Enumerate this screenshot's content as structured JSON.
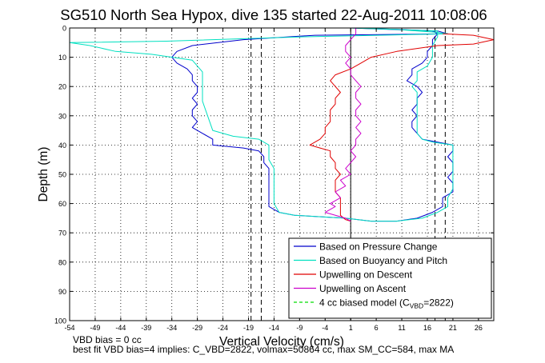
{
  "chart_data": {
    "type": "line",
    "title": "SG510 North Sea Hypox, dive 135 started 22-Aug-2011 10:08:06",
    "xlabel": "Vertical Velocity (cm/s)",
    "ylabel": "Depth (m)",
    "xlim": [
      -54,
      29
    ],
    "ylim": [
      0,
      100
    ],
    "y_reversed": true,
    "grid": true,
    "x_ticks": [
      -54,
      -49,
      -44,
      -39,
      -34,
      -29,
      -24,
      -19,
      -14,
      -9,
      -4,
      1,
      6,
      11,
      16,
      21,
      26
    ],
    "y_ticks": [
      0,
      10,
      20,
      30,
      40,
      50,
      60,
      70,
      80,
      90,
      100
    ],
    "reference_lines": [
      {
        "x": 1,
        "style": "solid"
      },
      {
        "x": -16.5,
        "style": "dashed"
      },
      {
        "x": -18.5,
        "style": "dashed"
      },
      {
        "x": 17.5,
        "style": "dashed"
      },
      {
        "x": 19.5,
        "style": "dashed"
      }
    ],
    "legend_position": "bottom-right",
    "series": [
      {
        "name": "Based on Pressure Change",
        "color": "#0000cc",
        "points": [
          [
            1,
            0
          ],
          [
            10,
            0.5
          ],
          [
            18,
            1
          ],
          [
            20,
            2
          ],
          [
            -6,
            2.5
          ],
          [
            -20,
            4
          ],
          [
            -30,
            6
          ],
          [
            -33,
            8
          ],
          [
            -34,
            10
          ],
          [
            -33,
            12
          ],
          [
            -31,
            14
          ],
          [
            -30,
            16
          ],
          [
            -30,
            18
          ],
          [
            -29,
            20
          ],
          [
            -29,
            22
          ],
          [
            -30,
            24
          ],
          [
            -29,
            26
          ],
          [
            -30,
            28
          ],
          [
            -30,
            30
          ],
          [
            -29,
            32
          ],
          [
            -30,
            34
          ],
          [
            -28,
            36
          ],
          [
            -26,
            38
          ],
          [
            -26,
            40
          ],
          [
            -20,
            41
          ],
          [
            -17,
            42
          ],
          [
            -16,
            44
          ],
          [
            -16,
            46
          ],
          [
            -15,
            48
          ],
          [
            -15,
            50
          ],
          [
            -15,
            54
          ],
          [
            -15,
            58
          ],
          [
            -15,
            61
          ],
          [
            -13,
            63
          ],
          [
            -10,
            64
          ],
          [
            0,
            65
          ],
          [
            5,
            66
          ],
          [
            10,
            66
          ],
          [
            14,
            65
          ],
          [
            17,
            63
          ],
          [
            19,
            61
          ],
          [
            19,
            58
          ],
          [
            21,
            56
          ],
          [
            21,
            53
          ],
          [
            20,
            51
          ],
          [
            21,
            49
          ],
          [
            21,
            46
          ],
          [
            20,
            44
          ],
          [
            21,
            42
          ],
          [
            21,
            40
          ],
          [
            18,
            39
          ],
          [
            15,
            38
          ],
          [
            14,
            36
          ],
          [
            13,
            34
          ],
          [
            13,
            32
          ],
          [
            14,
            30
          ],
          [
            13,
            28
          ],
          [
            14,
            26
          ],
          [
            14,
            24
          ],
          [
            15,
            22
          ],
          [
            14,
            20
          ],
          [
            12,
            18
          ],
          [
            13,
            16
          ],
          [
            13,
            14
          ],
          [
            15,
            12
          ],
          [
            16,
            10
          ],
          [
            16,
            8
          ],
          [
            17,
            6
          ],
          [
            17,
            4
          ],
          [
            18,
            2
          ],
          [
            17,
            1
          ],
          [
            1,
            0
          ]
        ]
      },
      {
        "name": "Based on Buoyancy and Pitch",
        "color": "#00e0c0",
        "points": [
          [
            1,
            0
          ],
          [
            10,
            0.5
          ],
          [
            18,
            1.5
          ],
          [
            20,
            2
          ],
          [
            -8,
            3
          ],
          [
            -35,
            4.5
          ],
          [
            -54,
            5
          ],
          [
            -50,
            6
          ],
          [
            -45,
            8
          ],
          [
            -38,
            9
          ],
          [
            -30,
            11
          ],
          [
            -29,
            13
          ],
          [
            -28,
            15
          ],
          [
            -28,
            17
          ],
          [
            -28,
            20
          ],
          [
            -28,
            25
          ],
          [
            -27,
            30
          ],
          [
            -26,
            35
          ],
          [
            -22,
            37
          ],
          [
            -17,
            38
          ],
          [
            -15,
            40
          ],
          [
            -15,
            42
          ],
          [
            -15,
            45
          ],
          [
            -14,
            48
          ],
          [
            -14,
            52
          ],
          [
            -14,
            56
          ],
          [
            -14,
            60
          ],
          [
            -13,
            63
          ],
          [
            -10,
            64
          ],
          [
            0,
            65
          ],
          [
            5,
            66
          ],
          [
            10,
            66
          ],
          [
            15,
            65
          ],
          [
            18,
            63
          ],
          [
            20,
            61
          ],
          [
            20,
            58
          ],
          [
            21,
            55
          ],
          [
            21,
            52
          ],
          [
            21,
            48
          ],
          [
            21,
            45
          ],
          [
            21,
            40
          ],
          [
            17,
            39
          ],
          [
            15,
            38
          ],
          [
            14,
            36
          ],
          [
            14,
            32
          ],
          [
            14,
            28
          ],
          [
            14,
            24
          ],
          [
            14,
            22
          ],
          [
            13,
            20
          ],
          [
            14,
            18
          ],
          [
            14,
            15
          ],
          [
            16,
            13
          ],
          [
            17,
            10
          ],
          [
            17,
            6
          ],
          [
            18,
            3
          ],
          [
            18,
            1
          ],
          [
            1,
            0
          ]
        ]
      },
      {
        "name": "Upwelling on Descent",
        "color": "#e00000",
        "points": [
          [
            19,
            2
          ],
          [
            25,
            2.5
          ],
          [
            29,
            4
          ],
          [
            25,
            5.5
          ],
          [
            18,
            6
          ],
          [
            14,
            7
          ],
          [
            10,
            8
          ],
          [
            5,
            10
          ],
          [
            3,
            12
          ],
          [
            1,
            14
          ],
          [
            -2,
            16
          ],
          [
            -3,
            18
          ],
          [
            -2,
            20
          ],
          [
            -1,
            22
          ],
          [
            -2,
            24
          ],
          [
            -2,
            26
          ],
          [
            -3,
            28
          ],
          [
            -3,
            30
          ],
          [
            -3,
            32
          ],
          [
            -4,
            34
          ],
          [
            -4,
            36
          ],
          [
            -5,
            38
          ],
          [
            -7,
            40
          ],
          [
            -5,
            41
          ],
          [
            -3,
            42
          ],
          [
            -3,
            44
          ],
          [
            -2,
            46
          ],
          [
            -2,
            48
          ],
          [
            -1,
            50
          ],
          [
            -2,
            52
          ],
          [
            -2,
            54
          ],
          [
            -2,
            56
          ],
          [
            -1,
            58
          ],
          [
            -1,
            60
          ],
          [
            -1,
            62
          ],
          [
            -1,
            64
          ],
          [
            0,
            65.5
          ],
          [
            1,
            66
          ]
        ]
      },
      {
        "name": "Upwelling on Ascent",
        "color": "#cc00cc",
        "points": [
          [
            1,
            66
          ],
          [
            0,
            65
          ],
          [
            -4,
            63
          ],
          [
            -2,
            61
          ],
          [
            -3,
            60
          ],
          [
            -1,
            58
          ],
          [
            -2,
            56
          ],
          [
            0,
            54
          ],
          [
            -1,
            52
          ],
          [
            1,
            50
          ],
          [
            0,
            48
          ],
          [
            1,
            46
          ],
          [
            2,
            44
          ],
          [
            1,
            42
          ],
          [
            2,
            40
          ],
          [
            2,
            38
          ],
          [
            3,
            36
          ],
          [
            2,
            34
          ],
          [
            3,
            32
          ],
          [
            2,
            30
          ],
          [
            2,
            28
          ],
          [
            3,
            26
          ],
          [
            2,
            24
          ],
          [
            2,
            22
          ],
          [
            3,
            20
          ],
          [
            2,
            18
          ],
          [
            1,
            16
          ],
          [
            1,
            14
          ],
          [
            0,
            12
          ],
          [
            1,
            10
          ],
          [
            0,
            8
          ],
          [
            0,
            6
          ],
          [
            1,
            4
          ],
          [
            2,
            2
          ],
          [
            2,
            0
          ]
        ]
      },
      {
        "name": "4 cc biased model (C_VBD=2822)",
        "color": "#00dd00",
        "style": "dashed",
        "points": []
      }
    ]
  },
  "legend": {
    "entries": [
      {
        "text": "Based on Pressure Change",
        "color": "#0000cc",
        "style": "solid"
      },
      {
        "text": "Based on Buoyancy and Pitch",
        "color": "#00e0c0",
        "style": "solid"
      },
      {
        "text": "Upwelling on Descent",
        "color": "#e00000",
        "style": "solid"
      },
      {
        "text": "Upwelling on Ascent",
        "color": "#cc00cc",
        "style": "solid"
      },
      {
        "text": "4 cc biased model (C",
        "sub": "VBD",
        "tail": "=2822)",
        "color": "#00dd00",
        "style": "dashed"
      }
    ]
  },
  "footer": {
    "line1": "VBD bias = 0 cc",
    "line2": "best fit VBD bias=4 implies: C_VBD=2822, volmax=50864 cc, max SM_CC=584, max MA"
  }
}
